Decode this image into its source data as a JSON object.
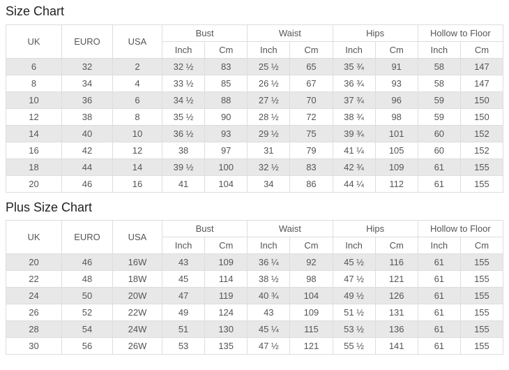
{
  "colors": {
    "stripe_row_bg": "#e8e8e8",
    "table_border": "#dddddd",
    "cell_text": "#555555",
    "title_text": "#222222",
    "page_bg": "#ffffff"
  },
  "tables": [
    {
      "title": "Size Chart",
      "columns": {
        "simple": [
          "UK",
          "EURO",
          "USA"
        ],
        "groups": [
          {
            "label": "Bust",
            "sub": [
              "Inch",
              "Cm"
            ]
          },
          {
            "label": "Waist",
            "sub": [
              "Inch",
              "Cm"
            ]
          },
          {
            "label": "Hips",
            "sub": [
              "Inch",
              "Cm"
            ]
          },
          {
            "label": "Hollow to Floor",
            "sub": [
              "Inch",
              "Cm"
            ]
          }
        ]
      },
      "rows": [
        [
          "6",
          "32",
          "2",
          "32 ½",
          "83",
          "25 ½",
          "65",
          "35 ¾",
          "91",
          "58",
          "147"
        ],
        [
          "8",
          "34",
          "4",
          "33 ½",
          "85",
          "26 ½",
          "67",
          "36 ¾",
          "93",
          "58",
          "147"
        ],
        [
          "10",
          "36",
          "6",
          "34 ½",
          "88",
          "27 ½",
          "70",
          "37 ¾",
          "96",
          "59",
          "150"
        ],
        [
          "12",
          "38",
          "8",
          "35 ½",
          "90",
          "28 ½",
          "72",
          "38 ¾",
          "98",
          "59",
          "150"
        ],
        [
          "14",
          "40",
          "10",
          "36 ½",
          "93",
          "29 ½",
          "75",
          "39 ¾",
          "101",
          "60",
          "152"
        ],
        [
          "16",
          "42",
          "12",
          "38",
          "97",
          "31",
          "79",
          "41 ¼",
          "105",
          "60",
          "152"
        ],
        [
          "18",
          "44",
          "14",
          "39 ½",
          "100",
          "32 ½",
          "83",
          "42 ¾",
          "109",
          "61",
          "155"
        ],
        [
          "20",
          "46",
          "16",
          "41",
          "104",
          "34",
          "86",
          "44 ¼",
          "112",
          "61",
          "155"
        ]
      ]
    },
    {
      "title": "Plus Size Chart",
      "columns": {
        "simple": [
          "UK",
          "EURO",
          "USA"
        ],
        "groups": [
          {
            "label": "Bust",
            "sub": [
              "Inch",
              "Cm"
            ]
          },
          {
            "label": "Waist",
            "sub": [
              "Inch",
              "Cm"
            ]
          },
          {
            "label": "Hips",
            "sub": [
              "Inch",
              "Cm"
            ]
          },
          {
            "label": "Hollow to Floor",
            "sub": [
              "Inch",
              "Cm"
            ]
          }
        ]
      },
      "rows": [
        [
          "20",
          "46",
          "16W",
          "43",
          "109",
          "36 ¼",
          "92",
          "45 ½",
          "116",
          "61",
          "155"
        ],
        [
          "22",
          "48",
          "18W",
          "45",
          "114",
          "38 ½",
          "98",
          "47 ½",
          "121",
          "61",
          "155"
        ],
        [
          "24",
          "50",
          "20W",
          "47",
          "119",
          "40 ¾",
          "104",
          "49 ½",
          "126",
          "61",
          "155"
        ],
        [
          "26",
          "52",
          "22W",
          "49",
          "124",
          "43",
          "109",
          "51 ½",
          "131",
          "61",
          "155"
        ],
        [
          "28",
          "54",
          "24W",
          "51",
          "130",
          "45 ¼",
          "115",
          "53 ½",
          "136",
          "61",
          "155"
        ],
        [
          "30",
          "56",
          "26W",
          "53",
          "135",
          "47 ½",
          "121",
          "55 ½",
          "141",
          "61",
          "155"
        ]
      ]
    }
  ]
}
